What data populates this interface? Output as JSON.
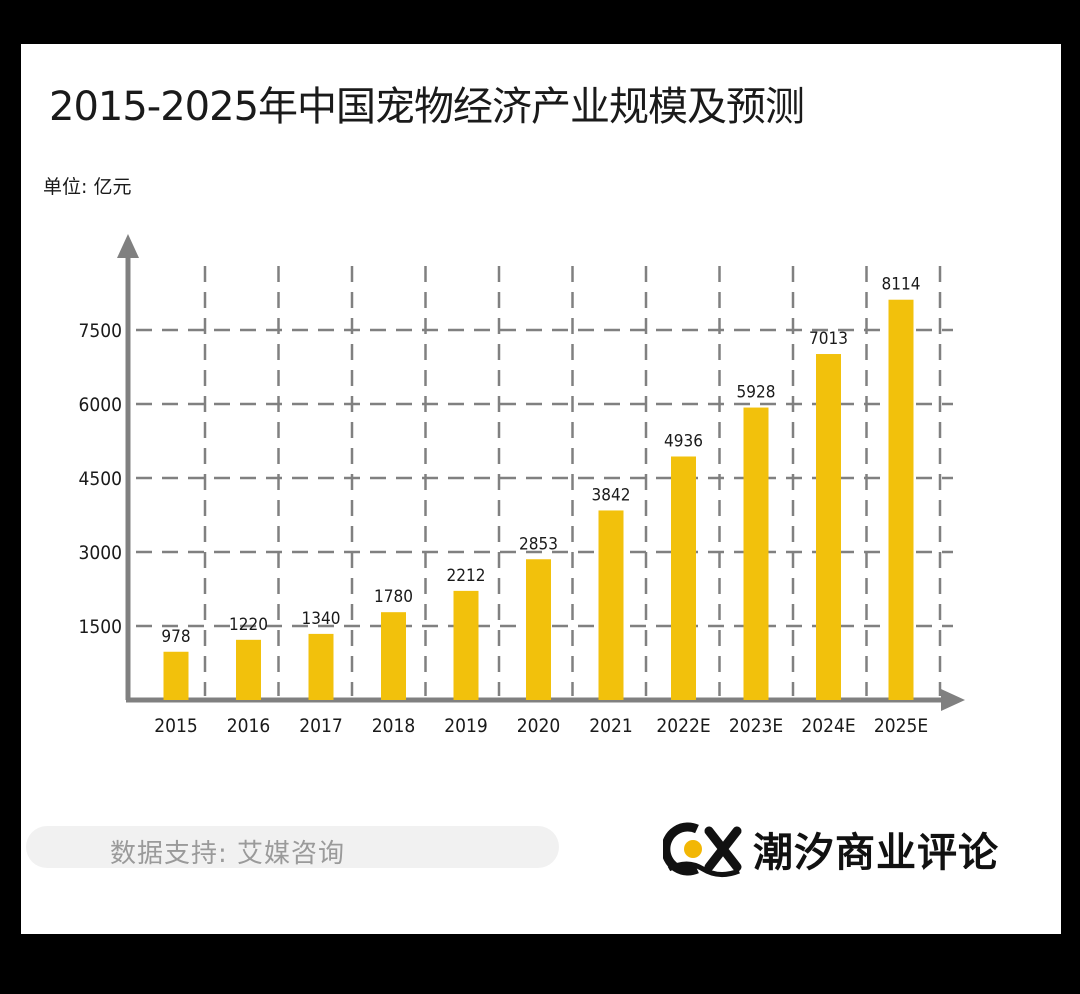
{
  "title": "2015-2025年中国宠物经济产业规模及预测",
  "unit_label": "单位: 亿元",
  "source": "数据支持: 艾媒咨询",
  "brand": {
    "name": "潮汐商业评论",
    "logo_text": "CX"
  },
  "colors": {
    "bar": "#f2c10c",
    "axis": "#808080",
    "grid": "#808080",
    "logo_accent": "#f2b705"
  },
  "chart_data": {
    "type": "bar",
    "title": "2015-2025年中国宠物经济产业规模及预测",
    "ylabel": "单位: 亿元",
    "xlabel": "",
    "categories": [
      "2015",
      "2016",
      "2017",
      "2018",
      "2019",
      "2020",
      "2021",
      "2022E",
      "2023E",
      "2024E",
      "2025E"
    ],
    "values": [
      978,
      1220,
      1340,
      1780,
      2212,
      2853,
      3842,
      4936,
      5928,
      7013,
      8114
    ],
    "value_labels": [
      "978",
      "1220",
      "1340",
      "1780",
      "2212",
      "2853",
      "3842",
      "4936",
      "5928",
      "7013",
      "8114"
    ],
    "yticks": [
      1500,
      3000,
      4500,
      6000,
      7500
    ],
    "ytick_labels": [
      "1500",
      "3000",
      "4500",
      "6000",
      "7500"
    ],
    "grid": true,
    "legend": "none"
  }
}
